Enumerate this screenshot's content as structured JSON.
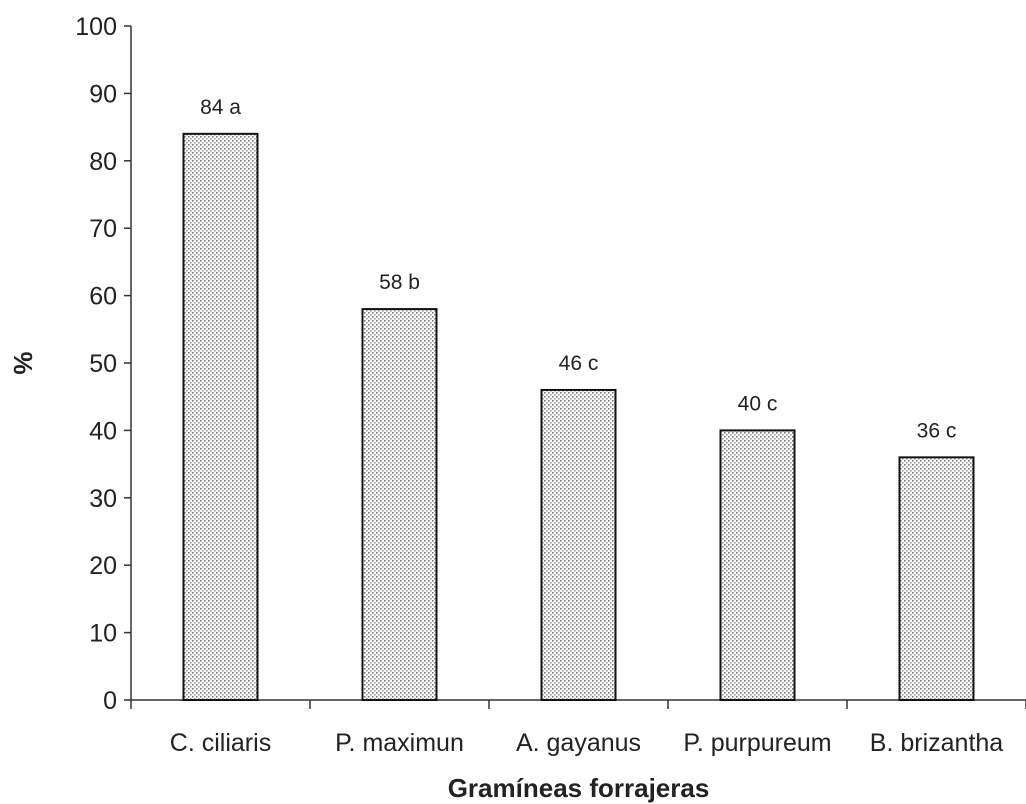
{
  "chart_data": {
    "type": "bar",
    "title": "",
    "xlabel": "Gramíneas forrajeras",
    "ylabel": "%",
    "ylim": [
      0,
      100
    ],
    "yticks": [
      0,
      10,
      20,
      30,
      40,
      50,
      60,
      70,
      80,
      90,
      100
    ],
    "categories": [
      "C. ciliaris",
      "P. maximun",
      "A. gayanus",
      "P. purpureum",
      "B. brizantha"
    ],
    "values": [
      84,
      58,
      46,
      40,
      36
    ],
    "data_labels": [
      "84 a",
      "58 b",
      "46 c",
      "40 c",
      "36 c"
    ],
    "bar_fill": "dotted-pattern",
    "colors": {
      "bar_outline": "#111111",
      "dot": "#7a7a7a",
      "axis": "#333333",
      "text": "#222222"
    },
    "grid": false,
    "legend": "none"
  }
}
